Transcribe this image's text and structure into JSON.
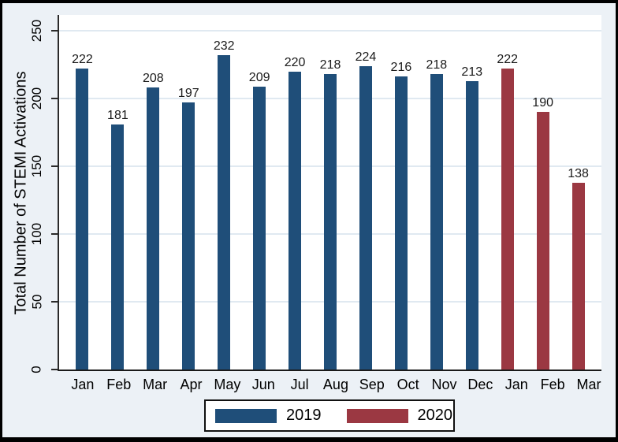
{
  "theme": {
    "background": "#ecf1f6",
    "plot_background": "#ffffff",
    "grid_color": "#e0e9f1",
    "axis_color": "#2a2a2a",
    "text_color": "#000000"
  },
  "chart_data": {
    "type": "bar",
    "title": "",
    "xlabel": "",
    "ylabel": "Total Number of STEMI Activations",
    "ylim": [
      0,
      250
    ],
    "yticks": [
      0,
      50,
      100,
      150,
      200,
      250
    ],
    "grid": "horizontal",
    "legend_position": "bottom-center",
    "categories": [
      "Jan",
      "Feb",
      "Mar",
      "Apr",
      "May",
      "Jun",
      "Jul",
      "Aug",
      "Sep",
      "Oct",
      "Nov",
      "Dec",
      "Jan",
      "Feb",
      "Mar"
    ],
    "bars": [
      {
        "month": "Jan",
        "series": "2019",
        "value": 222
      },
      {
        "month": "Feb",
        "series": "2019",
        "value": 181
      },
      {
        "month": "Mar",
        "series": "2019",
        "value": 208
      },
      {
        "month": "Apr",
        "series": "2019",
        "value": 197
      },
      {
        "month": "May",
        "series": "2019",
        "value": 232
      },
      {
        "month": "Jun",
        "series": "2019",
        "value": 209
      },
      {
        "month": "Jul",
        "series": "2019",
        "value": 220
      },
      {
        "month": "Aug",
        "series": "2019",
        "value": 218
      },
      {
        "month": "Sep",
        "series": "2019",
        "value": 224
      },
      {
        "month": "Oct",
        "series": "2019",
        "value": 216
      },
      {
        "month": "Nov",
        "series": "2019",
        "value": 218
      },
      {
        "month": "Dec",
        "series": "2019",
        "value": 213
      },
      {
        "month": "Jan",
        "series": "2020",
        "value": 222
      },
      {
        "month": "Feb",
        "series": "2020",
        "value": 190
      },
      {
        "month": "Mar",
        "series": "2020",
        "value": 138
      }
    ],
    "series": [
      {
        "name": "2019",
        "color": "#1f4e79"
      },
      {
        "name": "2020",
        "color": "#9b3842"
      }
    ]
  }
}
